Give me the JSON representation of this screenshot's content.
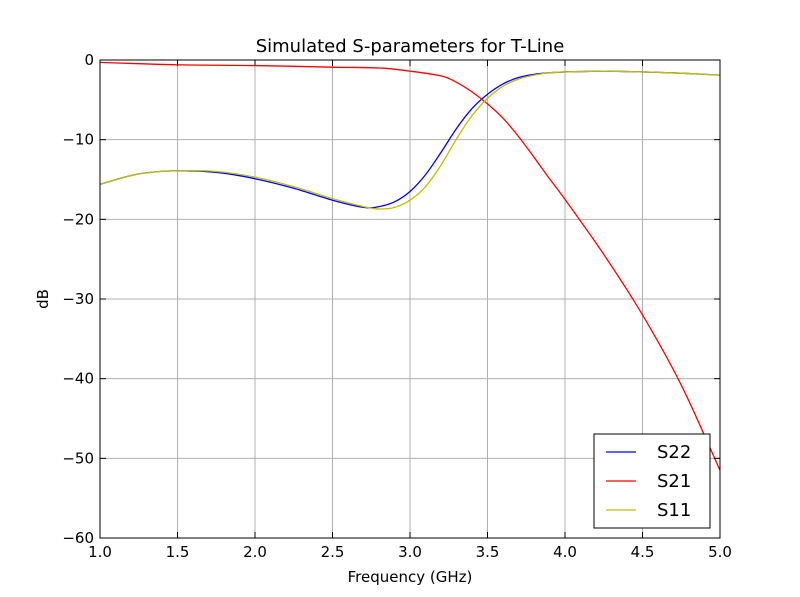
{
  "chart_data": {
    "type": "line",
    "title": "Simulated S-parameters for T-Line",
    "xlabel": "Frequency (GHz)",
    "ylabel": "dB",
    "xlim": [
      1.0,
      5.0
    ],
    "ylim": [
      -60,
      0
    ],
    "xticks": [
      1.0,
      1.5,
      2.0,
      2.5,
      3.0,
      3.5,
      4.0,
      4.5,
      5.0
    ],
    "xtick_labels": [
      "1.0",
      "1.5",
      "2.0",
      "2.5",
      "3.0",
      "3.5",
      "4.0",
      "4.5",
      "5.0"
    ],
    "yticks": [
      0,
      -10,
      -20,
      -30,
      -40,
      -50,
      -60
    ],
    "ytick_labels": [
      "0",
      "−10",
      "−20",
      "−30",
      "−40",
      "−50",
      "−60"
    ],
    "grid": true,
    "legend_position": "bottom-right",
    "series": [
      {
        "name": "S22",
        "color": "#0000ff",
        "x": [
          1.0,
          1.25,
          1.5,
          1.75,
          2.0,
          2.25,
          2.5,
          2.7,
          2.8,
          2.9,
          3.0,
          3.1,
          3.2,
          3.3,
          3.4,
          3.5,
          3.6,
          3.7,
          3.8,
          3.9,
          4.0,
          4.1,
          4.25,
          4.4,
          4.6,
          4.8,
          5.0
        ],
        "values": [
          -15.6,
          -14.3,
          -13.9,
          -14.1,
          -14.9,
          -16.1,
          -17.6,
          -18.5,
          -18.4,
          -17.8,
          -16.5,
          -14.4,
          -11.6,
          -8.6,
          -6.1,
          -4.3,
          -3.0,
          -2.2,
          -1.8,
          -1.6,
          -1.5,
          -1.45,
          -1.4,
          -1.45,
          -1.55,
          -1.7,
          -1.9
        ]
      },
      {
        "name": "S21",
        "color": "#ff0000",
        "x": [
          1.0,
          1.5,
          2.0,
          2.5,
          2.8,
          3.0,
          3.2,
          3.3,
          3.4,
          3.5,
          3.6,
          3.7,
          3.8,
          3.9,
          4.0,
          4.25,
          4.5,
          4.75,
          5.0
        ],
        "values": [
          -0.3,
          -0.6,
          -0.7,
          -0.9,
          -1.0,
          -1.4,
          -2.0,
          -2.8,
          -4.0,
          -5.5,
          -7.3,
          -9.6,
          -12.2,
          -14.9,
          -17.5,
          -24.4,
          -32.0,
          -40.8,
          -51.5
        ]
      },
      {
        "name": "S11",
        "color": "#bfbf00",
        "x": [
          1.0,
          1.25,
          1.5,
          1.75,
          2.0,
          2.25,
          2.5,
          2.7,
          2.8,
          2.9,
          3.0,
          3.1,
          3.2,
          3.3,
          3.4,
          3.5,
          3.6,
          3.7,
          3.8,
          3.9,
          4.0,
          4.1,
          4.25,
          4.4,
          4.6,
          4.8,
          5.0
        ],
        "values": [
          -15.6,
          -14.3,
          -13.9,
          -14.0,
          -14.7,
          -15.9,
          -17.4,
          -18.4,
          -18.7,
          -18.5,
          -17.6,
          -15.9,
          -13.2,
          -9.9,
          -7.0,
          -4.8,
          -3.3,
          -2.4,
          -1.9,
          -1.6,
          -1.5,
          -1.45,
          -1.4,
          -1.45,
          -1.55,
          -1.7,
          -1.9
        ]
      }
    ]
  }
}
